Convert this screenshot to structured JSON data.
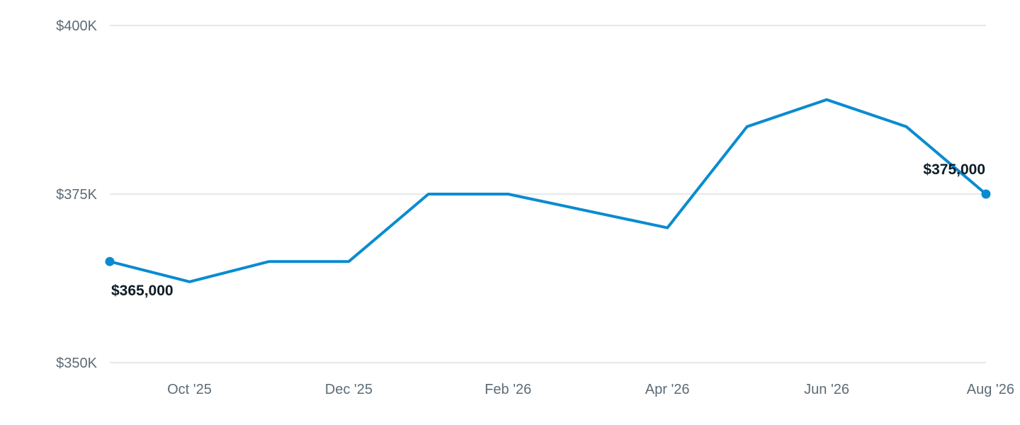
{
  "chart_data": {
    "type": "line",
    "title": "",
    "xlabel": "",
    "ylabel": "",
    "x": [
      "Sep '25",
      "Oct '25",
      "Nov '25",
      "Dec '25",
      "Jan '26",
      "Feb '26",
      "Mar '26",
      "Apr '26",
      "May '26",
      "Jun '26",
      "Jul '26",
      "Aug '26"
    ],
    "x_tick_labels": [
      "Oct '25",
      "Dec '25",
      "Feb '26",
      "Apr '26",
      "Jun '26",
      "Aug '26"
    ],
    "series": [
      {
        "values": [
          365000,
          362000,
          365000,
          365000,
          375000,
          375000,
          372500,
          370000,
          385000,
          389000,
          385000,
          375000
        ],
        "color": "#0a8bd1"
      }
    ],
    "ylim": [
      350000,
      400000
    ],
    "y_ticks": [
      350000,
      375000,
      400000
    ],
    "y_tick_labels": [
      "$350K",
      "$375K",
      "$400K"
    ],
    "grid": true,
    "legend": "none",
    "annotations": [
      {
        "point": "first",
        "text": "$365,000",
        "placement": "below"
      },
      {
        "point": "last",
        "text": "$375,000",
        "placement": "above-left"
      }
    ]
  }
}
